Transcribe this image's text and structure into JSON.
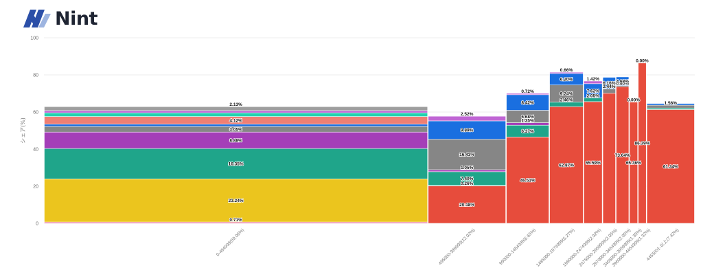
{
  "brand": {
    "name": "Nint",
    "logo_icon": "nint-logo-icon"
  },
  "chart_data": {
    "type": "bar",
    "subtype": "marimekko-stacked",
    "title": "",
    "xlabel": "",
    "ylabel": "シェア(%)",
    "ylim": [
      0,
      100
    ],
    "yticks": [
      0,
      20,
      40,
      60,
      80,
      100
    ],
    "grid": true,
    "legend": "none",
    "categories": [
      {
        "label": "0-494999(59.06%)",
        "width_share": 59.06
      },
      {
        "label": "495000-989999(12.02%)",
        "width_share": 12.02
      },
      {
        "label": "990000-1484999(6.65%)",
        "width_share": 6.65
      },
      {
        "label": "1485000-1979999(5.27%)",
        "width_share": 5.27
      },
      {
        "label": "1980000-2474999(2.92%)",
        "width_share": 2.92
      },
      {
        "label": "2475000-2969999(2.05%)",
        "width_share": 2.05
      },
      {
        "label": "2970000-3464999(2.05%)",
        "width_share": 2.05
      },
      {
        "label": "3465000-3959999(1.35%)",
        "width_share": 1.35
      },
      {
        "label": "3960000-4454999(1.32%)",
        "width_share": 1.32
      },
      {
        "label": "4455001-以上(7.42%)",
        "width_share": 7.42
      }
    ],
    "series_colors": {
      "red": "#e74c3c",
      "pink": "#e86a8c",
      "yellow": "#ebc51e",
      "teal": "#1fa58a",
      "purple": "#a43eb8",
      "gray": "#868686",
      "blue": "#1a6fe0",
      "salmon": "#ef7f73",
      "mint": "#22d3b0",
      "violet": "#c065d4",
      "lightgray": "#9e9e9e"
    },
    "stacks": [
      [
        {
          "color": "pink",
          "value": 0.71,
          "label": "0.71%"
        },
        {
          "color": "yellow",
          "value": 23.24,
          "label": "23.24%"
        },
        {
          "color": "teal",
          "value": 16.35,
          "label": "16.35%"
        },
        {
          "color": "purple",
          "value": 8.88,
          "label": "8.88%"
        },
        {
          "color": "gray",
          "value": 3.05,
          "label": "3.05%"
        },
        {
          "color": "blue",
          "value": 1.2,
          "label": ""
        },
        {
          "color": "salmon",
          "value": 4.12,
          "label": "4.12%"
        },
        {
          "color": "mint",
          "value": 2.0,
          "label": ""
        },
        {
          "color": "violet",
          "value": 1.2,
          "label": ""
        },
        {
          "color": "lightgray",
          "value": 2.13,
          "label": "2.13%"
        }
      ],
      [
        {
          "color": "red",
          "value": 20.18,
          "label": "20.18%"
        },
        {
          "color": "teal",
          "value": 0.26,
          "label": "0.26%"
        },
        {
          "color": "teal",
          "value": 7.4,
          "label": "7.40%"
        },
        {
          "color": "purple",
          "value": 1.05,
          "label": "1.05%"
        },
        {
          "color": "gray",
          "value": 16.43,
          "label": "16.43%"
        },
        {
          "color": "blue",
          "value": 9.89,
          "label": "9.89%"
        },
        {
          "color": "violet",
          "value": 2.52,
          "label": "2.52%"
        }
      ],
      [
        {
          "color": "red",
          "value": 46.51,
          "label": "46.51%"
        },
        {
          "color": "teal",
          "value": 6.37,
          "label": "6.37%"
        },
        {
          "color": "purple",
          "value": 1.35,
          "label": "1.35%"
        },
        {
          "color": "gray",
          "value": 6.68,
          "label": "6.68%"
        },
        {
          "color": "blue",
          "value": 8.42,
          "label": "8.42%"
        },
        {
          "color": "violet",
          "value": 0.72,
          "label": "0.72%"
        }
      ],
      [
        {
          "color": "red",
          "value": 62.87,
          "label": "62.87%"
        },
        {
          "color": "teal",
          "value": 2.46,
          "label": "2.46%"
        },
        {
          "color": "gray",
          "value": 9.24,
          "label": "9.24%"
        },
        {
          "color": "blue",
          "value": 6.2,
          "label": "6.20%"
        },
        {
          "color": "violet",
          "value": 0.66,
          "label": "0.66%"
        }
      ],
      [
        {
          "color": "red",
          "value": 65.59,
          "label": "65.59%"
        },
        {
          "color": "teal",
          "value": 2.05,
          "label": "2.05%"
        },
        {
          "color": "blue",
          "value": 7.62,
          "label": "7.62%"
        },
        {
          "color": "violet",
          "value": 1.42,
          "label": "1.42%"
        }
      ],
      [
        {
          "color": "red",
          "value": 70.1,
          "label": ""
        },
        {
          "color": "gray",
          "value": 2.44,
          "label": "2.44%"
        },
        {
          "color": "blue",
          "value": 6.16,
          "label": "6.16%"
        }
      ],
      [
        {
          "color": "red",
          "value": 73.64,
          "label": "73.64%"
        },
        {
          "color": "gray",
          "value": 0.6,
          "label": "0.60%"
        },
        {
          "color": "blue",
          "value": 4.68,
          "label": "4.68%"
        }
      ],
      [
        {
          "color": "red",
          "value": 65.36,
          "label": "65.36%"
        },
        {
          "color": "gray",
          "value": 0.0,
          "label": "0.00%"
        }
      ],
      [
        {
          "color": "red",
          "value": 86.39,
          "label": "86.39%"
        },
        {
          "color": "gray",
          "value": 0.0,
          "label": "0.00%"
        }
      ],
      [
        {
          "color": "red",
          "value": 61.34,
          "label": "61.34%"
        },
        {
          "color": "teal",
          "value": 0.8,
          "label": ""
        },
        {
          "color": "gray",
          "value": 1.56,
          "label": "1.56%"
        },
        {
          "color": "blue",
          "value": 0.9,
          "label": ""
        }
      ]
    ]
  }
}
